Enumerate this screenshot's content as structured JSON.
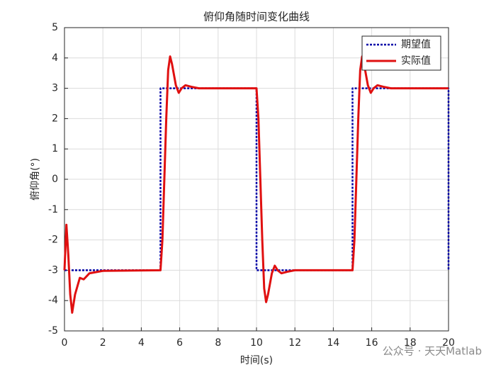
{
  "chart_data": {
    "type": "line",
    "title": "俯仰角随时间变化曲线",
    "x_label": "时间(s)",
    "y_label": "俯仰角(°)",
    "xlim": [
      0,
      20
    ],
    "xticks": [
      0,
      2,
      4,
      6,
      8,
      10,
      12,
      14,
      16,
      18,
      20
    ],
    "ylim": [
      -5,
      5
    ],
    "yticks": [
      -5,
      -4,
      -3,
      -2,
      -1,
      0,
      1,
      2,
      3,
      4,
      5
    ],
    "grid": true,
    "legend": "northeast",
    "series": [
      {
        "name": "期望值",
        "color": "#0000a8",
        "dash": "dotted",
        "x": [
          0,
          5,
          5,
          10,
          10,
          15,
          15,
          20,
          20
        ],
        "values": [
          -3,
          -3,
          3,
          3,
          -3,
          -3,
          3,
          3,
          -3
        ]
      },
      {
        "name": "实际值",
        "color": "#e01010",
        "dash": "solid",
        "x": [
          0,
          0.1,
          0.2,
          0.3,
          0.4,
          0.55,
          0.8,
          1.0,
          1.3,
          2,
          5,
          5.1,
          5.2,
          5.3,
          5.4,
          5.5,
          5.6,
          5.8,
          5.95,
          6.1,
          6.3,
          6.6,
          7,
          10,
          10.1,
          10.2,
          10.3,
          10.4,
          10.5,
          10.6,
          10.8,
          10.95,
          11.1,
          11.3,
          11.6,
          12,
          15,
          15.1,
          15.2,
          15.3,
          15.4,
          15.5,
          15.6,
          15.8,
          15.95,
          16.1,
          16.3,
          16.6,
          17,
          20
        ],
        "values": [
          -3,
          -1.5,
          -2.5,
          -3.8,
          -4.4,
          -3.8,
          -3.25,
          -3.3,
          -3.1,
          -3.02,
          -3,
          -2,
          0,
          2,
          3.6,
          4.05,
          3.8,
          3.1,
          2.85,
          3.0,
          3.1,
          3.05,
          3,
          3,
          2,
          0,
          -2,
          -3.6,
          -4.05,
          -3.8,
          -3.1,
          -2.85,
          -3.0,
          -3.1,
          -3.05,
          -3,
          -3,
          -2,
          0,
          2,
          3.6,
          4.05,
          3.8,
          3.1,
          2.85,
          3.0,
          3.1,
          3.05,
          3,
          3
        ]
      }
    ],
    "watermark": "公众号 · 天天Matlab"
  }
}
